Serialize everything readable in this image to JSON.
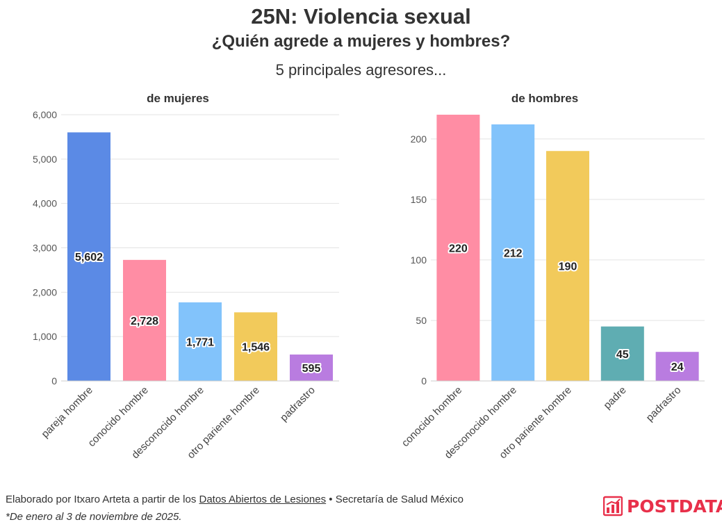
{
  "title": "25N: Violencia sexual",
  "subtitle": "¿Quién agrede a mujeres y hombres?",
  "subsubtitle": "5 principales agresores...",
  "footer": {
    "prefix": "Elaborado por Itxaro Arteta a partir de los ",
    "link": "Datos Abiertos de Lesiones",
    "suffix": " • Secretaría de Salud México",
    "note": "*De enero al 3 de noviembre de 2025."
  },
  "logo": {
    "text": "POSTDATA",
    "icon": "bar-chart-icon",
    "color": "#e8304a"
  },
  "chart_data": [
    {
      "type": "bar",
      "title": "de mujeres",
      "categories": [
        "pareja hombre",
        "conocido hombre",
        "desconocido hombre",
        "otro pariente hombre",
        "padrastro"
      ],
      "values": [
        5602,
        2728,
        1771,
        1546,
        595
      ],
      "value_labels": [
        "5,602",
        "2,728",
        "1,771",
        "1,546",
        "595"
      ],
      "colors": [
        "#5b8ae5",
        "#ff8da4",
        "#82c3fb",
        "#f2ca5b",
        "#b97ce0"
      ],
      "ylim": [
        0,
        6000
      ],
      "yticks": [
        0,
        1000,
        2000,
        3000,
        4000,
        5000,
        6000
      ],
      "ytick_labels": [
        "0",
        "1,000",
        "2,000",
        "3,000",
        "4,000",
        "5,000",
        "6,000"
      ],
      "xlabel": "",
      "ylabel": "",
      "grid": true
    },
    {
      "type": "bar",
      "title": "de hombres",
      "categories": [
        "conocido hombre",
        "desconocido hombre",
        "otro pariente hombre",
        "padre",
        "padrastro"
      ],
      "values": [
        220,
        212,
        190,
        45,
        24
      ],
      "value_labels": [
        "220",
        "212",
        "190",
        "45",
        "24"
      ],
      "colors": [
        "#ff8da4",
        "#82c3fb",
        "#f2ca5b",
        "#5fadb2",
        "#b97ce0"
      ],
      "ylim": [
        0,
        220
      ],
      "yticks": [
        0,
        50,
        100,
        150,
        200
      ],
      "ytick_labels": [
        "0",
        "50",
        "100",
        "150",
        "200"
      ],
      "xlabel": "",
      "ylabel": "",
      "grid": true
    }
  ]
}
